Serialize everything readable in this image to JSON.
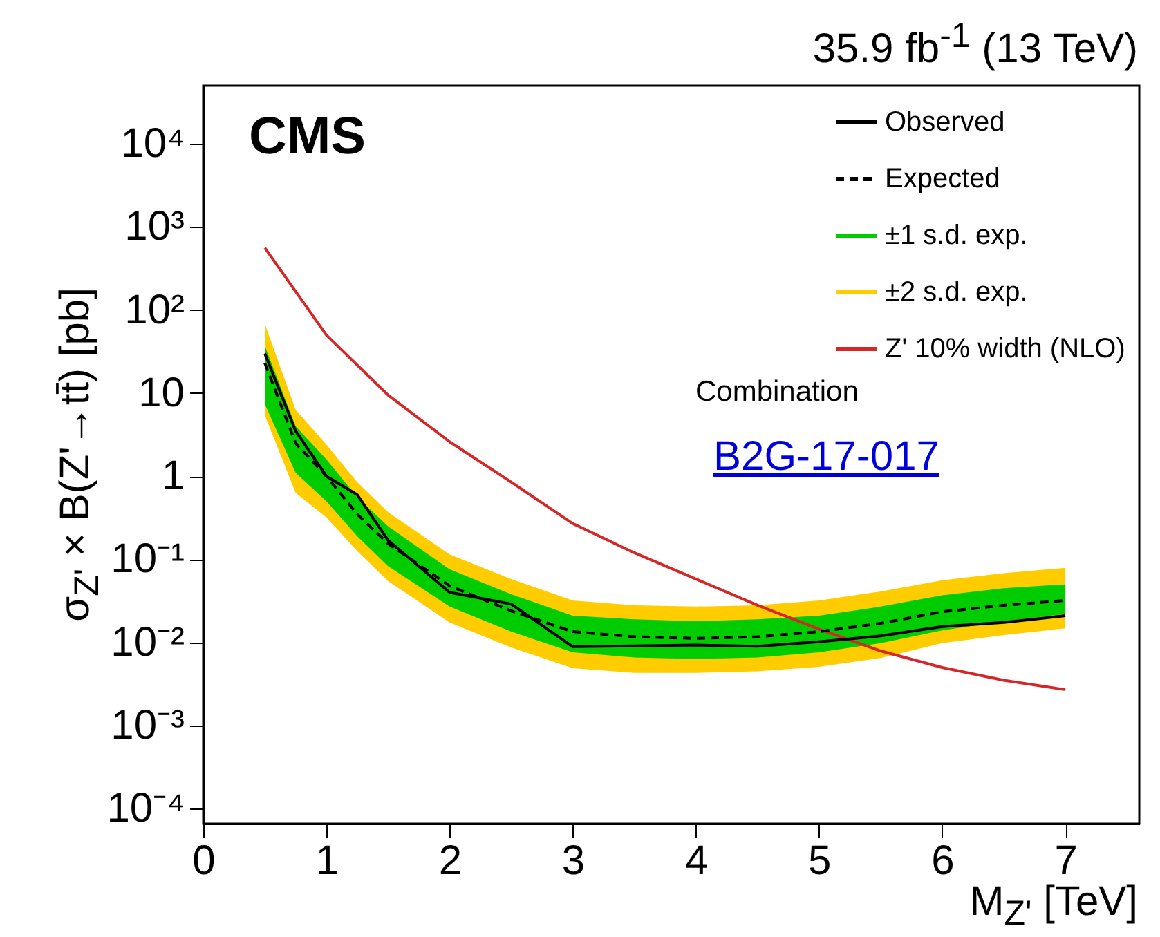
{
  "chart_data": {
    "type": "line",
    "title": "35.9 fb$^{-1}$ (13 TeV)",
    "xlabel": "M$_{Z'}$ [TeV]",
    "ylabel": "σ$_{Z'}$ × B(Z'→tt̄) [pb]",
    "annotations": [
      "CMS",
      "Combination",
      "B2G-17-017"
    ],
    "x": [
      0.5,
      0.75,
      1,
      1.25,
      1.5,
      2,
      2.5,
      3,
      3.5,
      4,
      4.5,
      5,
      5.5,
      6,
      6.5,
      7
    ],
    "series": [
      {
        "name": "Z' 10% width (NLO)",
        "color": "#d62728",
        "line_style": "solid",
        "x": [
          0.5,
          1,
          1.5,
          2,
          2.5,
          3,
          3.5,
          4,
          4.5,
          5,
          5.5,
          6,
          6.5,
          7
        ],
        "values": [
          560,
          50,
          9.5,
          2.6,
          0.85,
          0.27,
          0.12,
          0.058,
          0.028,
          0.0145,
          0.0079,
          0.005,
          0.0035,
          0.0027
        ]
      },
      {
        "name": "±2 s.d. exp.",
        "color": "#ffcc00",
        "values": [
          null,
          null,
          null,
          null,
          null,
          null,
          null,
          null,
          null,
          null,
          null,
          null,
          null,
          null,
          null,
          null
        ],
        "lower": [
          5.4,
          0.63,
          0.32,
          0.126,
          0.055,
          0.0174,
          0.0087,
          0.0049,
          0.0043,
          0.0043,
          0.0045,
          0.0051,
          0.0065,
          0.0098,
          0.0123,
          0.0148
        ],
        "upper": [
          68,
          6.3,
          2.4,
          0.85,
          0.37,
          0.115,
          0.058,
          0.032,
          0.028,
          0.027,
          0.028,
          0.032,
          0.041,
          0.056,
          0.068,
          0.079
        ]
      },
      {
        "name": "±1 s.d. exp.",
        "color": "#00cc00",
        "values": [
          null,
          null,
          null,
          null,
          null,
          null,
          null,
          null,
          null,
          null,
          null,
          null,
          null,
          null,
          null,
          null
        ],
        "lower": [
          7.4,
          1.1,
          0.5,
          0.19,
          0.083,
          0.027,
          0.0135,
          0.0076,
          0.0066,
          0.0063,
          0.0066,
          0.0076,
          0.0098,
          0.014,
          0.018,
          0.022
        ],
        "upper": [
          37,
          4.0,
          1.6,
          0.56,
          0.25,
          0.076,
          0.038,
          0.021,
          0.019,
          0.018,
          0.019,
          0.021,
          0.027,
          0.037,
          0.045,
          0.05
        ]
      },
      {
        "name": "Expected",
        "color": "#000000",
        "line_style": "dashed",
        "values": [
          23,
          2.5,
          1.0,
          0.35,
          0.155,
          0.048,
          0.024,
          0.0135,
          0.0117,
          0.0112,
          0.0117,
          0.0135,
          0.017,
          0.0234,
          0.028,
          0.032
        ]
      },
      {
        "name": "Observed",
        "color": "#000000",
        "line_style": "solid",
        "values": [
          30,
          3.5,
          1.0,
          0.6,
          0.17,
          0.04,
          0.029,
          0.0089,
          0.0091,
          0.0093,
          0.009,
          0.0102,
          0.012,
          0.0155,
          0.0174,
          0.021
        ]
      }
    ],
    "log": "y",
    "xlim": [
      0,
      7.6
    ],
    "xticks": [
      0,
      1,
      2,
      3,
      4,
      5,
      6,
      7
    ],
    "ylim": [
      6.6e-05,
      50000
    ],
    "yticks": [
      {
        "value": 0.0001,
        "label": "10⁻⁴"
      },
      {
        "value": 0.001,
        "label": "10⁻³"
      },
      {
        "value": 0.01,
        "label": "10⁻²"
      },
      {
        "value": 0.1,
        "label": "10⁻¹"
      },
      {
        "value": 1,
        "label": "1"
      },
      {
        "value": 10,
        "label": "10"
      },
      {
        "value": 100,
        "label": "10²"
      },
      {
        "value": 1000,
        "label": "10³"
      },
      {
        "value": 10000,
        "label": "10⁴"
      }
    ],
    "grid": false,
    "legend": "top right",
    "marker": "none"
  }
}
